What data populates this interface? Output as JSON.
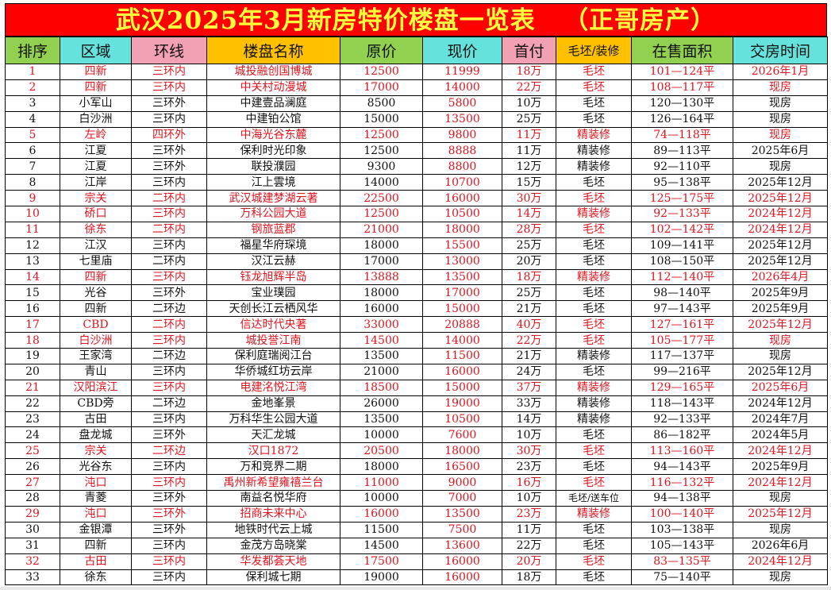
{
  "title": "武汉2025年3月新房特价楼盘一览表   （正哥房产）",
  "colors": {
    "title_bg": "#ff0000",
    "title_text": "#ffff3c",
    "highlight_text": "#e0141e",
    "header_green": "#92d050",
    "header_cyan": "#66e2dc",
    "header_pink": "#f2a0b4",
    "header_orange": "#ffc000"
  },
  "headers": [
    "排序",
    "区域",
    "环线",
    "楼盘名称",
    "原价",
    "现价",
    "首付",
    "毛坯/装修",
    "在售面积",
    "交房时间"
  ],
  "rows": [
    {
      "hl": true,
      "cells": [
        "1",
        "四新",
        "三环内",
        "城投融创国博城",
        "12500",
        "11999",
        "18万",
        "毛坯",
        "101—124平",
        "2026年1月"
      ]
    },
    {
      "hl": true,
      "cells": [
        "2",
        "四新",
        "三环内",
        "中关村动漫城",
        "17000",
        "14000",
        "22万",
        "毛坯",
        "108—117平",
        "现房"
      ]
    },
    {
      "hl": false,
      "cells": [
        "3",
        "小军山",
        "三环外",
        "中建壹品澜庭",
        "8500",
        "5800",
        "10万",
        "毛坯",
        "120—130平",
        "现房"
      ]
    },
    {
      "hl": false,
      "cells": [
        "4",
        "白沙洲",
        "三环内",
        "中建铂公馆",
        "15000",
        "13500",
        "25万",
        "毛坯",
        "126—164平",
        "现房"
      ]
    },
    {
      "hl": true,
      "cells": [
        "5",
        "左岭",
        "四环外",
        "中海光谷东麓",
        "12500",
        "9800",
        "11万",
        "精装修",
        "74—118平",
        "现房"
      ]
    },
    {
      "hl": false,
      "cells": [
        "6",
        "江夏",
        "三环外",
        "保利时光印象",
        "12500",
        "8888",
        "11万",
        "精装修",
        "89—113平",
        "2025年6月"
      ]
    },
    {
      "hl": false,
      "cells": [
        "7",
        "江夏",
        "三环外",
        "联投濮园",
        "9300",
        "8800",
        "12万",
        "精装修",
        "92—110平",
        "现房"
      ]
    },
    {
      "hl": false,
      "cells": [
        "8",
        "江岸",
        "三环内",
        "江上雲境",
        "14000",
        "10700",
        "15万",
        "毛坯",
        "95—138平",
        "2025年12月"
      ]
    },
    {
      "hl": true,
      "cells": [
        "9",
        "宗关",
        "二环内",
        "武汉城建梦湖云著",
        "22500",
        "16000",
        "30万",
        "毛坯",
        "125—175平",
        "2025年12月"
      ]
    },
    {
      "hl": true,
      "cells": [
        "10",
        "硚口",
        "三环内",
        "万科公园大道",
        "12500",
        "10500",
        "14万",
        "精装修",
        "92—133平",
        "2024年12月"
      ]
    },
    {
      "hl": true,
      "cells": [
        "11",
        "徐东",
        "二环内",
        "钢旅蓝郡",
        "21000",
        "18000",
        "28万",
        "毛坯",
        "102—142平",
        "2024年12月"
      ]
    },
    {
      "hl": false,
      "cells": [
        "12",
        "江汉",
        "三环内",
        "福星华府琛境",
        "18000",
        "15500",
        "25万",
        "毛坯",
        "109—141平",
        "2025年12月"
      ]
    },
    {
      "hl": false,
      "cells": [
        "13",
        "七里庙",
        "二环内",
        "汉江云赫",
        "17000",
        "13000",
        "20万",
        "毛坯",
        "108—150平",
        "2025年12月"
      ]
    },
    {
      "hl": true,
      "cells": [
        "14",
        "四新",
        "三环内",
        "钰龙旭辉半岛",
        "13888",
        "13500",
        "18万",
        "精装修",
        "112—140平",
        "2026年4月"
      ]
    },
    {
      "hl": false,
      "cells": [
        "15",
        "光谷",
        "三环外",
        "宝业璞园",
        "18000",
        "17000",
        "25万",
        "毛坯",
        "98—140平",
        "2025年9月"
      ]
    },
    {
      "hl": false,
      "cells": [
        "16",
        "四新",
        "二环边",
        "天创长江云栖风华",
        "16000",
        "15000",
        "21万",
        "毛坯",
        "97—143平",
        "2025年9月"
      ]
    },
    {
      "hl": true,
      "cells": [
        "17",
        "CBD",
        "二环内",
        "信达时代央著",
        "33000",
        "20888",
        "40万",
        "毛坯",
        "127—161平",
        "2025年12月"
      ]
    },
    {
      "hl": true,
      "cells": [
        "18",
        "白沙洲",
        "三环内",
        "城投誉江南",
        "14500",
        "14000",
        "22万",
        "毛坯",
        "105—177平",
        "现房"
      ]
    },
    {
      "hl": false,
      "cells": [
        "19",
        "王家湾",
        "二环边",
        "保利庭瑞阅江台",
        "13500",
        "11500",
        "21万",
        "精装修",
        "117—137平",
        "现房"
      ]
    },
    {
      "hl": false,
      "cells": [
        "20",
        "青山",
        "三环内",
        "华侨城红坊云岸",
        "21000",
        "16000",
        "24万",
        "毛坯",
        "99—216平",
        "2025年12月"
      ]
    },
    {
      "hl": true,
      "cells": [
        "21",
        "汉阳滨江",
        "三环内",
        "电建洺悦江湾",
        "18500",
        "15000",
        "37万",
        "精装修",
        "129—165平",
        "2025年6月"
      ]
    },
    {
      "hl": false,
      "cells": [
        "22",
        "CBD旁",
        "二环边",
        "金地峯景",
        "26000",
        "19000",
        "33万",
        "精装修",
        "118—143平",
        "2024年12月"
      ]
    },
    {
      "hl": false,
      "cells": [
        "23",
        "古田",
        "三环内",
        "万科华生公园大道",
        "13500",
        "10500",
        "14万",
        "精装修",
        "92—133平",
        "2024年7月"
      ]
    },
    {
      "hl": false,
      "cells": [
        "24",
        "盘龙城",
        "三环外",
        "天汇龙城",
        "10000",
        "7600",
        "10万",
        "毛坯",
        "86—182平",
        "2024年5月"
      ]
    },
    {
      "hl": true,
      "cells": [
        "25",
        "宗关",
        "二环边",
        "汉口1872",
        "20500",
        "18000",
        "30万",
        "毛坯",
        "113—160平",
        "2024年12月"
      ]
    },
    {
      "hl": false,
      "cells": [
        "26",
        "光谷东",
        "三环内",
        "万和竞界二期",
        "18000",
        "16500",
        "23万",
        "毛坯",
        "94—143平",
        "2025年9月"
      ]
    },
    {
      "hl": true,
      "cells": [
        "27",
        "沌口",
        "三环内",
        "禹州新希望雍禧兰台",
        "11000",
        "9000",
        "16万",
        "毛坯",
        "116—132平",
        "2024年12月"
      ]
    },
    {
      "hl": false,
      "cells": [
        "28",
        "青菱",
        "三环外",
        "南益名悦华府",
        "10000",
        "7000",
        "10万",
        "毛坯/送车位",
        "94—138平",
        "现房"
      ]
    },
    {
      "hl": true,
      "cells": [
        "29",
        "沌口",
        "三环外",
        "招商未来中心",
        "16000",
        "13500",
        "23万",
        "精装修",
        "100—140平",
        "2025年12月"
      ]
    },
    {
      "hl": false,
      "cells": [
        "30",
        "金银潭",
        "三环外",
        "地铁时代云上城",
        "11500",
        "7500",
        "11万",
        "毛坯",
        "103—138平",
        "现房"
      ]
    },
    {
      "hl": false,
      "cells": [
        "31",
        "四新",
        "三环内",
        "金茂方岛晓棠",
        "14500",
        "13600",
        "22万",
        "毛坯",
        "105—143平",
        "2026年6月"
      ]
    },
    {
      "hl": true,
      "cells": [
        "32",
        "古田",
        "三环内",
        "华发都荟天地",
        "17500",
        "16000",
        "20万",
        "毛坯",
        "83—135平",
        "2024年12月"
      ]
    },
    {
      "hl": false,
      "cells": [
        "33",
        "徐东",
        "三环内",
        "保利城七期",
        "19000",
        "16000",
        "18万",
        "毛坯",
        "75—140平",
        "现房"
      ]
    }
  ]
}
